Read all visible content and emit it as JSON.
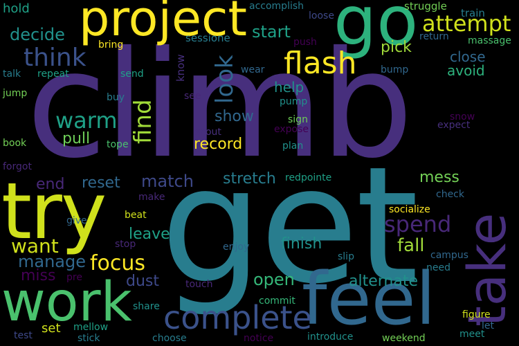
{
  "words": {
    "climb": "climb",
    "get": "get",
    "try": "try",
    "go": "go",
    "project": "project",
    "work": "work",
    "feel": "feel",
    "take": "take",
    "complete": "complete",
    "flash": "flash",
    "attempt": "attempt",
    "think": "think",
    "find": "find",
    "look": "look",
    "warm": "warm",
    "spend": "spend",
    "focus": "focus",
    "want": "want",
    "manage": "manage",
    "decide": "decide",
    "start": "start",
    "match": "match",
    "stretch": "stretch",
    "finish": "finish",
    "fall": "fall",
    "open": "open",
    "alternate": "alternate",
    "mess": "mess",
    "pick": "pick",
    "close": "close",
    "avoid": "avoid",
    "show": "show",
    "record": "record",
    "pull": "pull",
    "end": "end",
    "reset": "reset",
    "leave": "leave",
    "dust": "dust",
    "miss": "miss",
    "help": "help",
    "hold": "hold",
    "accomplish": "accomplish",
    "loose": "loose",
    "struggle": "struggle",
    "train": "train",
    "return": "return",
    "massage": "massage",
    "sessione": "sessione",
    "push": "push",
    "bring": "bring",
    "know": "know",
    "wear": "wear",
    "bump": "bump",
    "talk": "talk",
    "repeat": "repeat",
    "send": "send",
    "jump": "jump",
    "buy": "buy",
    "see": "see",
    "pump": "pump",
    "sign": "sign",
    "expose": "expose",
    "scout": "scout",
    "snow": "snow",
    "expect": "expect",
    "book": "book",
    "tope": "tope",
    "plan": "plan",
    "forgot": "forgot",
    "redpointe": "redpointe",
    "check": "check",
    "make": "make",
    "beat": "beat",
    "give": "give",
    "socialize": "socialize",
    "stop": "stop",
    "enjoy": "enjoy",
    "campus": "campus",
    "slip": "slip",
    "need": "need",
    "pre": "pre",
    "touch": "touch",
    "commit": "commit",
    "share": "share",
    "figure": "figure",
    "let": "let",
    "test": "test",
    "set": "set",
    "mellow": "mellow",
    "stick": "stick",
    "choose": "choose",
    "notice": "notice",
    "introduce": "introduce",
    "weekend": "weekend",
    "meet": "meet"
  }
}
